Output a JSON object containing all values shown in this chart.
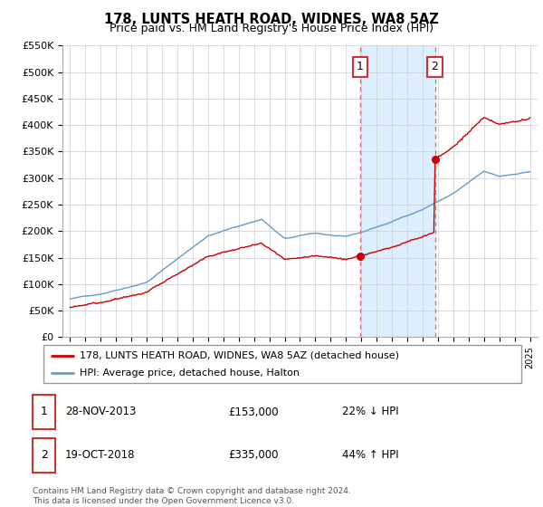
{
  "title": "178, LUNTS HEATH ROAD, WIDNES, WA8 5AZ",
  "subtitle": "Price paid vs. HM Land Registry's House Price Index (HPI)",
  "ylim": [
    0,
    550000
  ],
  "yticks": [
    0,
    50000,
    100000,
    150000,
    200000,
    250000,
    300000,
    350000,
    400000,
    450000,
    500000,
    550000
  ],
  "ytick_labels": [
    "£0",
    "£50K",
    "£100K",
    "£150K",
    "£200K",
    "£250K",
    "£300K",
    "£350K",
    "£400K",
    "£450K",
    "£500K",
    "£550K"
  ],
  "hpi_color": "#6699cc",
  "price_color": "#cc0000",
  "highlight_bg": "#ddeeff",
  "highlight_border": "#dd6666",
  "purchase1_year": 2013.92,
  "purchase1_price": 153000,
  "purchase1_label": "1",
  "purchase2_year": 2018.8,
  "purchase2_price": 335000,
  "purchase2_label": "2",
  "legend_line1": "178, LUNTS HEATH ROAD, WIDNES, WA8 5AZ (detached house)",
  "legend_line2": "HPI: Average price, detached house, Halton",
  "table_row1": [
    "1",
    "28-NOV-2013",
    "£153,000",
    "22% ↓ HPI"
  ],
  "table_row2": [
    "2",
    "19-OCT-2018",
    "£335,000",
    "44% ↑ HPI"
  ],
  "footnote": "Contains HM Land Registry data © Crown copyright and database right 2024.\nThis data is licensed under the Open Government Licence v3.0.",
  "xstart": 1994.5,
  "xend": 2025.5
}
